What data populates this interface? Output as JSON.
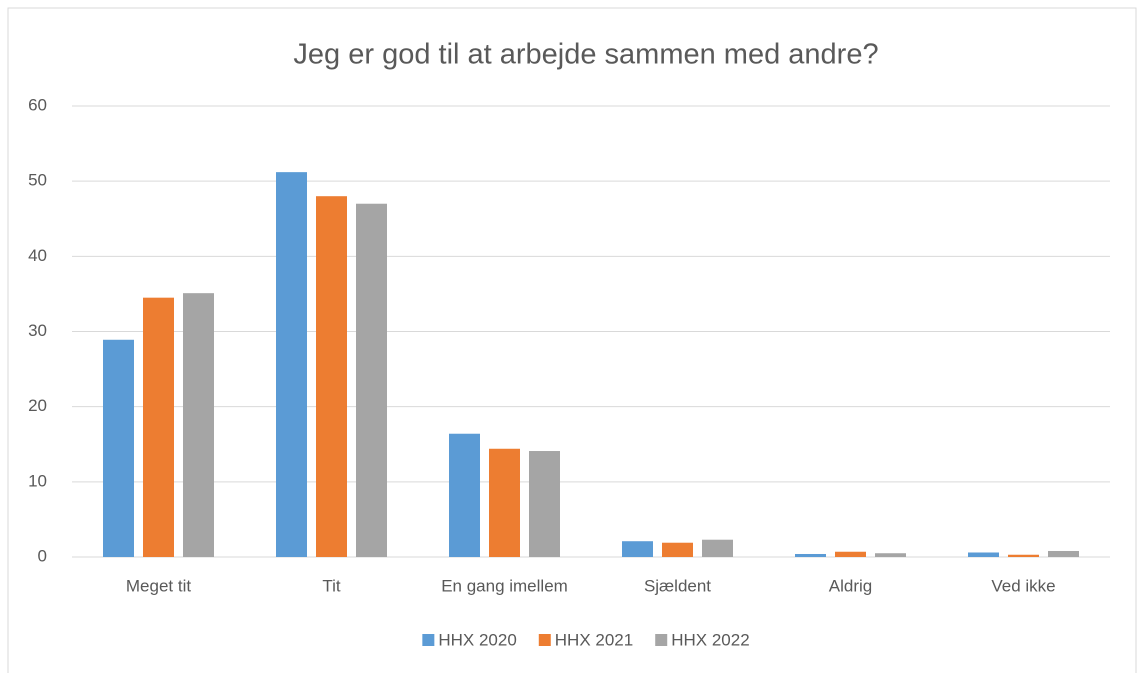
{
  "chart_data": {
    "type": "bar",
    "title": "Jeg er god til at arbejde sammen med andre?",
    "categories": [
      "Meget tit",
      "Tit",
      "En gang imellem",
      "Sjældent",
      "Aldrig",
      "Ved ikke"
    ],
    "series": [
      {
        "name": "HHX 2020",
        "color": "#5b9bd5",
        "values": [
          28.9,
          51.2,
          16.4,
          2.1,
          0.4,
          0.6
        ]
      },
      {
        "name": "HHX 2021",
        "color": "#ed7d31",
        "values": [
          34.5,
          48.0,
          14.4,
          1.9,
          0.7,
          0.3
        ]
      },
      {
        "name": "HHX 2022",
        "color": "#a5a5a5",
        "values": [
          35.1,
          47.0,
          14.1,
          2.3,
          0.5,
          0.8
        ]
      }
    ],
    "ylim": [
      0,
      60
    ],
    "yticks": [
      0,
      10,
      20,
      30,
      40,
      50,
      60
    ],
    "grid": true,
    "legend": "bottom"
  }
}
